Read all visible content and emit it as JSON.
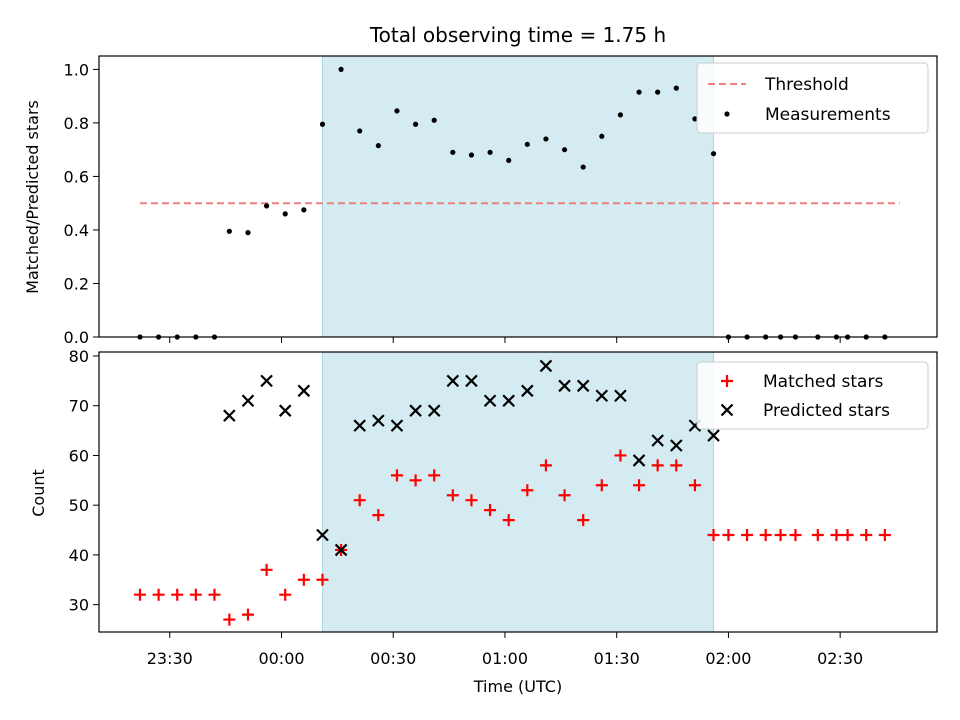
{
  "chart_data": {
    "title": "Total observing time = 1.75 h",
    "xlabel": "Time (UTC)",
    "x_ticks": [
      "23:30",
      "00:00",
      "00:30",
      "01:00",
      "01:30",
      "02:00",
      "02:30"
    ],
    "x_tick_minutes": [
      -30,
      0,
      30,
      60,
      90,
      120,
      150
    ],
    "x_range_minutes": [
      -49,
      176
    ],
    "shaded_interval_minutes": [
      11,
      116
    ],
    "shade_color": "#d3ebf1",
    "panels": [
      {
        "type": "scatter",
        "ylabel": "Matched/Predicted stars",
        "ylim": [
          0,
          1.05
        ],
        "y_ticks": [
          "0.0",
          "0.2",
          "0.4",
          "0.6",
          "0.8",
          "1.0"
        ],
        "y_tick_values": [
          0,
          0.2,
          0.4,
          0.6,
          0.8,
          1.0
        ],
        "legend_position": "top-right",
        "threshold": {
          "name": "Threshold",
          "value": 0.5,
          "x_range": [
            -38,
            166
          ],
          "color": "#f08080"
        },
        "series": [
          {
            "name": "Measurements",
            "color": "#000000",
            "marker": "dot",
            "x": [
              -38,
              -33,
              -28,
              -23,
              -18,
              -14,
              -9,
              -4,
              1,
              6,
              11,
              16,
              21,
              26,
              31,
              36,
              41,
              46,
              51,
              56,
              61,
              66,
              71,
              76,
              81,
              86,
              91,
              96,
              101,
              106,
              111,
              116,
              120,
              125,
              130,
              134,
              138,
              144,
              149,
              152,
              157,
              162
            ],
            "y": [
              0,
              0,
              0,
              0,
              0,
              0.395,
              0.39,
              0.49,
              0.46,
              0.475,
              0.795,
              1.0,
              0.77,
              0.715,
              0.845,
              0.795,
              0.81,
              0.69,
              0.68,
              0.69,
              0.66,
              0.72,
              0.74,
              0.7,
              0.635,
              0.75,
              0.83,
              0.915,
              0.915,
              0.93,
              0.815,
              0.685,
              0,
              0,
              0,
              0,
              0,
              0,
              0,
              0,
              0,
              0
            ]
          }
        ]
      },
      {
        "type": "scatter",
        "ylabel": "Count",
        "ylim": [
          24.5,
          80.8
        ],
        "y_ticks": [
          "30",
          "40",
          "50",
          "60",
          "70",
          "80"
        ],
        "y_tick_values": [
          30,
          40,
          50,
          60,
          70,
          80
        ],
        "legend_position": "top-right",
        "series": [
          {
            "name": "Matched stars",
            "color": "#ff0000",
            "marker": "plus",
            "x": [
              -38,
              -33,
              -28,
              -23,
              -18,
              -14,
              -9,
              -4,
              1,
              6,
              11,
              16,
              21,
              26,
              31,
              36,
              41,
              46,
              51,
              56,
              61,
              66,
              71,
              76,
              81,
              86,
              91,
              96,
              101,
              106,
              111,
              116,
              120,
              125,
              130,
              134,
              138,
              144,
              149,
              152,
              157,
              162
            ],
            "y": [
              32,
              32,
              32,
              32,
              32,
              27,
              28,
              37,
              32,
              35,
              35,
              41,
              51,
              48,
              56,
              55,
              56,
              52,
              51,
              49,
              47,
              53,
              58,
              52,
              47,
              54,
              60,
              54,
              58,
              58,
              54,
              44,
              44,
              44,
              44,
              44,
              44,
              44,
              44,
              44,
              44,
              44
            ]
          },
          {
            "name": "Predicted stars",
            "color": "#000000",
            "marker": "cross",
            "x": [
              -14,
              -9,
              -4,
              1,
              6,
              11,
              16,
              21,
              26,
              31,
              36,
              41,
              46,
              51,
              56,
              61,
              66,
              71,
              76,
              81,
              86,
              91,
              96,
              101,
              106,
              111,
              116
            ],
            "y": [
              68,
              71,
              75,
              69,
              73,
              44,
              41,
              66,
              67,
              66,
              69,
              69,
              75,
              75,
              71,
              71,
              73,
              78,
              74,
              74,
              72,
              72,
              59,
              63,
              62,
              66,
              64
            ]
          }
        ]
      }
    ]
  }
}
